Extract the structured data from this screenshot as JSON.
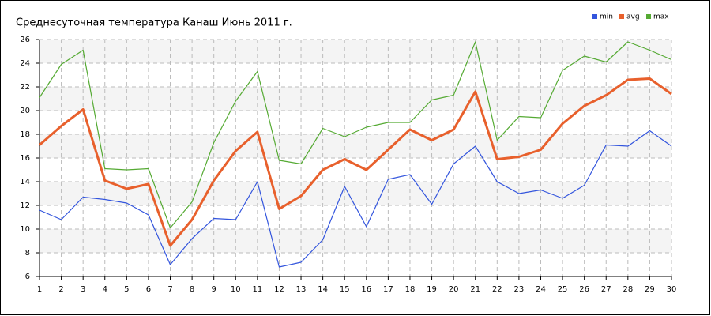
{
  "chart_data": {
    "type": "line",
    "title": "Среднесуточная температура Канаш  Июнь 2011 г.",
    "x": [
      1,
      2,
      3,
      4,
      5,
      6,
      7,
      8,
      9,
      10,
      11,
      12,
      13,
      14,
      15,
      16,
      17,
      18,
      19,
      20,
      21,
      22,
      23,
      24,
      25,
      26,
      27,
      28,
      29,
      30
    ],
    "xlim": [
      1,
      30
    ],
    "xticks": [
      1,
      2,
      3,
      4,
      5,
      6,
      7,
      8,
      9,
      10,
      11,
      12,
      13,
      14,
      15,
      16,
      17,
      18,
      19,
      20,
      21,
      22,
      23,
      24,
      25,
      26,
      27,
      28,
      29,
      30
    ],
    "ylim": [
      6,
      26
    ],
    "yticks": [
      6,
      8,
      10,
      12,
      14,
      16,
      18,
      20,
      22,
      24,
      26
    ],
    "grid": true,
    "legend": "top-right",
    "series": [
      {
        "name": "min",
        "color": "#3355dd",
        "values": [
          11.6,
          10.8,
          12.7,
          12.5,
          12.2,
          11.2,
          7.0,
          9.2,
          10.9,
          10.8,
          14.0,
          6.8,
          7.2,
          9.1,
          13.6,
          10.2,
          14.2,
          14.6,
          12.1,
          15.5,
          17.0,
          14.0,
          13.0,
          13.3,
          12.6,
          13.7,
          17.1,
          17.0,
          18.3,
          17.0
        ]
      },
      {
        "name": "avg",
        "color": "#e8602c",
        "values": [
          17.1,
          18.7,
          20.1,
          14.1,
          13.4,
          13.8,
          8.6,
          10.8,
          14.1,
          16.6,
          18.2,
          11.7,
          12.8,
          15.0,
          15.9,
          15.0,
          16.7,
          18.4,
          17.5,
          18.4,
          21.6,
          15.9,
          16.1,
          16.7,
          18.9,
          20.4,
          21.3,
          22.6,
          22.7,
          21.4
        ]
      },
      {
        "name": "max",
        "color": "#55aa33",
        "values": [
          21.1,
          23.9,
          25.1,
          15.1,
          15.0,
          15.1,
          10.1,
          12.3,
          17.3,
          20.8,
          23.3,
          15.8,
          15.5,
          18.5,
          17.8,
          18.6,
          19.0,
          19.0,
          20.9,
          21.3,
          25.8,
          17.5,
          19.5,
          19.4,
          23.4,
          24.6,
          24.1,
          25.8,
          25.1,
          24.3
        ]
      }
    ]
  }
}
